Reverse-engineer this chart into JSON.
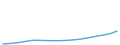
{
  "x": [
    2003,
    2004,
    2005,
    2006,
    2007,
    2008,
    2009,
    2010,
    2011,
    2012,
    2013,
    2014,
    2015,
    2016,
    2017,
    2018,
    2019,
    2020,
    2021,
    2022
  ],
  "y": [
    13500,
    14200,
    15100,
    16200,
    17800,
    19200,
    19000,
    18800,
    18600,
    18500,
    18700,
    19200,
    20000,
    21000,
    22500,
    24200,
    26000,
    27500,
    29500,
    33000
  ],
  "line_color": "#4DAADB",
  "linewidth": 1.0,
  "background_color": "#ffffff",
  "ylim": [
    12000,
    80000
  ],
  "xlim": [
    2002.5,
    2022.5
  ]
}
